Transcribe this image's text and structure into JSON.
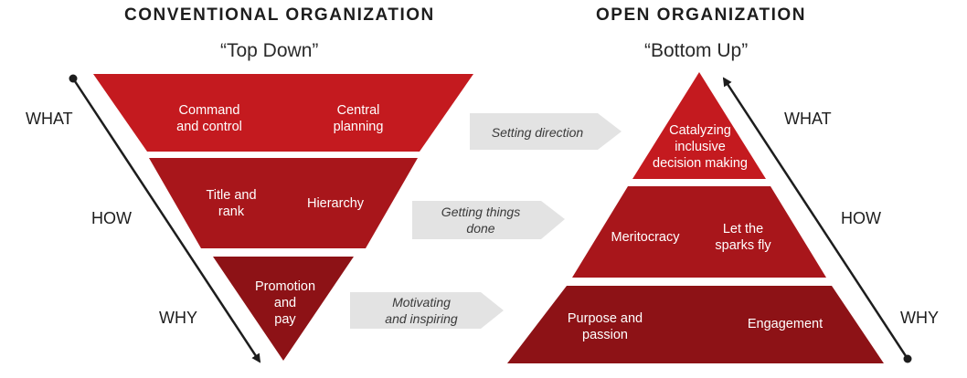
{
  "left": {
    "title": "CONVENTIONAL ORGANIZATION",
    "subtitle": "“Top Down”",
    "tiers": [
      {
        "left": "Command\nand control",
        "right": "Central\nplanning",
        "color": "#c41a1f"
      },
      {
        "left": "Title and\nrank",
        "right": "Hierarchy",
        "color": "#a8161b"
      },
      {
        "center": "Promotion\nand\npay",
        "color": "#8d1216"
      }
    ]
  },
  "right": {
    "title": "OPEN ORGANIZATION",
    "subtitle": "“Bottom Up”",
    "tiers": [
      {
        "center": "Catalyzing\ninclusive\ndecision making",
        "color": "#c41a1f"
      },
      {
        "left": "Meritocracy",
        "right": "Let the\nsparks fly",
        "color": "#a8161b"
      },
      {
        "left": "Purpose and\npassion",
        "right": "Engagement",
        "color": "#8d1216"
      }
    ]
  },
  "levels": [
    "WHAT",
    "HOW",
    "WHY"
  ],
  "connectors": [
    "Setting direction",
    "Getting things\ndone",
    "Motivating\nand inspiring"
  ],
  "colors": {
    "connector_fill": "#e3e3e3",
    "line": "#1d1d1d"
  }
}
